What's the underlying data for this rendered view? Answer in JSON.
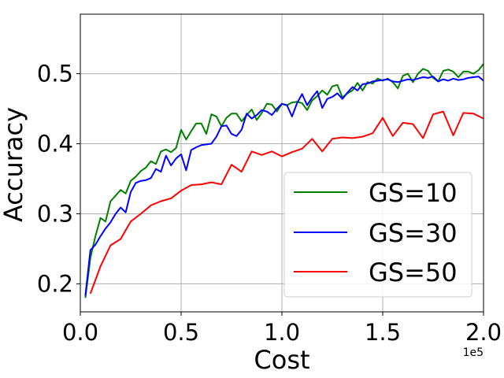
{
  "chart_data": {
    "type": "line",
    "xlabel": "Cost",
    "ylabel": "Accuracy",
    "x_offset_label": "1e5",
    "xlim": [
      0,
      2.0
    ],
    "ylim": [
      0.16,
      0.585
    ],
    "xticks": [
      0.0,
      0.5,
      1.0,
      1.5,
      2.0
    ],
    "xtick_labels": [
      "0.0",
      "0.5",
      "1.0",
      "1.5",
      "2.0"
    ],
    "yticks": [
      0.2,
      0.3,
      0.4,
      0.5
    ],
    "ytick_labels": [
      "0.2",
      "0.3",
      "0.4",
      "0.5"
    ],
    "grid": true,
    "legend_position": "lower-right",
    "series": [
      {
        "name": "GS=10",
        "color": "#008000",
        "points": [
          [
            0.025,
            0.18
          ],
          [
            0.05,
            0.237
          ],
          [
            0.075,
            0.268
          ],
          [
            0.1,
            0.294
          ],
          [
            0.125,
            0.289
          ],
          [
            0.15,
            0.318
          ],
          [
            0.175,
            0.326
          ],
          [
            0.2,
            0.334
          ],
          [
            0.225,
            0.329
          ],
          [
            0.25,
            0.347
          ],
          [
            0.275,
            0.353
          ],
          [
            0.3,
            0.361
          ],
          [
            0.325,
            0.366
          ],
          [
            0.35,
            0.375
          ],
          [
            0.375,
            0.371
          ],
          [
            0.4,
            0.389
          ],
          [
            0.425,
            0.392
          ],
          [
            0.45,
            0.388
          ],
          [
            0.475,
            0.394
          ],
          [
            0.5,
            0.42
          ],
          [
            0.525,
            0.406
          ],
          [
            0.55,
            0.418
          ],
          [
            0.575,
            0.429
          ],
          [
            0.6,
            0.429
          ],
          [
            0.625,
            0.414
          ],
          [
            0.65,
            0.442
          ],
          [
            0.675,
            0.439
          ],
          [
            0.7,
            0.425
          ],
          [
            0.725,
            0.437
          ],
          [
            0.75,
            0.443
          ],
          [
            0.775,
            0.443
          ],
          [
            0.8,
            0.432
          ],
          [
            0.825,
            0.441
          ],
          [
            0.85,
            0.449
          ],
          [
            0.875,
            0.434
          ],
          [
            0.9,
            0.444
          ],
          [
            0.925,
            0.457
          ],
          [
            0.95,
            0.456
          ],
          [
            0.975,
            0.446
          ],
          [
            1.0,
            0.457
          ],
          [
            1.025,
            0.455
          ],
          [
            1.05,
            0.459
          ],
          [
            1.075,
            0.46
          ],
          [
            1.1,
            0.458
          ],
          [
            1.125,
            0.448
          ],
          [
            1.15,
            0.462
          ],
          [
            1.175,
            0.468
          ],
          [
            1.2,
            0.476
          ],
          [
            1.225,
            0.47
          ],
          [
            1.25,
            0.482
          ],
          [
            1.275,
            0.484
          ],
          [
            1.3,
            0.466
          ],
          [
            1.325,
            0.472
          ],
          [
            1.35,
            0.476
          ],
          [
            1.375,
            0.487
          ],
          [
            1.4,
            0.476
          ],
          [
            1.425,
            0.488
          ],
          [
            1.45,
            0.486
          ],
          [
            1.475,
            0.493
          ],
          [
            1.5,
            0.49
          ],
          [
            1.525,
            0.493
          ],
          [
            1.55,
            0.488
          ],
          [
            1.575,
            0.479
          ],
          [
            1.6,
            0.497
          ],
          [
            1.625,
            0.5
          ],
          [
            1.65,
            0.488
          ],
          [
            1.675,
            0.5
          ],
          [
            1.7,
            0.507
          ],
          [
            1.725,
            0.504
          ],
          [
            1.75,
            0.494
          ],
          [
            1.775,
            0.489
          ],
          [
            1.8,
            0.504
          ],
          [
            1.825,
            0.506
          ],
          [
            1.85,
            0.503
          ],
          [
            1.875,
            0.495
          ],
          [
            1.9,
            0.503
          ],
          [
            1.925,
            0.503
          ],
          [
            1.95,
            0.5
          ],
          [
            1.975,
            0.505
          ],
          [
            2.0,
            0.514
          ]
        ]
      },
      {
        "name": "GS=30",
        "color": "#0000ff",
        "points": [
          [
            0.025,
            0.183
          ],
          [
            0.05,
            0.248
          ],
          [
            0.075,
            0.256
          ],
          [
            0.1,
            0.268
          ],
          [
            0.125,
            0.279
          ],
          [
            0.15,
            0.288
          ],
          [
            0.175,
            0.3
          ],
          [
            0.2,
            0.309
          ],
          [
            0.225,
            0.302
          ],
          [
            0.25,
            0.331
          ],
          [
            0.275,
            0.344
          ],
          [
            0.3,
            0.347
          ],
          [
            0.325,
            0.348
          ],
          [
            0.35,
            0.351
          ],
          [
            0.375,
            0.364
          ],
          [
            0.4,
            0.36
          ],
          [
            0.425,
            0.383
          ],
          [
            0.45,
            0.369
          ],
          [
            0.475,
            0.379
          ],
          [
            0.5,
            0.385
          ],
          [
            0.525,
            0.362
          ],
          [
            0.55,
            0.391
          ],
          [
            0.575,
            0.395
          ],
          [
            0.6,
            0.398
          ],
          [
            0.625,
            0.399
          ],
          [
            0.65,
            0.4
          ],
          [
            0.675,
            0.41
          ],
          [
            0.7,
            0.425
          ],
          [
            0.725,
            0.426
          ],
          [
            0.75,
            0.414
          ],
          [
            0.775,
            0.411
          ],
          [
            0.8,
            0.42
          ],
          [
            0.825,
            0.443
          ],
          [
            0.85,
            0.436
          ],
          [
            0.875,
            0.441
          ],
          [
            0.9,
            0.448
          ],
          [
            0.925,
            0.446
          ],
          [
            0.95,
            0.441
          ],
          [
            0.975,
            0.45
          ],
          [
            1.0,
            0.457
          ],
          [
            1.025,
            0.455
          ],
          [
            1.05,
            0.439
          ],
          [
            1.075,
            0.458
          ],
          [
            1.1,
            0.471
          ],
          [
            1.125,
            0.455
          ],
          [
            1.15,
            0.466
          ],
          [
            1.175,
            0.475
          ],
          [
            1.2,
            0.451
          ],
          [
            1.225,
            0.464
          ],
          [
            1.25,
            0.467
          ],
          [
            1.275,
            0.472
          ],
          [
            1.3,
            0.464
          ],
          [
            1.325,
            0.473
          ],
          [
            1.35,
            0.481
          ],
          [
            1.375,
            0.476
          ],
          [
            1.4,
            0.485
          ],
          [
            1.425,
            0.486
          ],
          [
            1.45,
            0.489
          ],
          [
            1.475,
            0.49
          ],
          [
            1.5,
            0.491
          ],
          [
            1.525,
            0.492
          ],
          [
            1.55,
            0.489
          ],
          [
            1.575,
            0.488
          ],
          [
            1.6,
            0.49
          ],
          [
            1.625,
            0.492
          ],
          [
            1.65,
            0.491
          ],
          [
            1.675,
            0.493
          ],
          [
            1.7,
            0.495
          ],
          [
            1.725,
            0.494
          ],
          [
            1.75,
            0.496
          ],
          [
            1.775,
            0.489
          ],
          [
            1.8,
            0.492
          ],
          [
            1.825,
            0.49
          ],
          [
            1.85,
            0.493
          ],
          [
            1.875,
            0.491
          ],
          [
            1.9,
            0.492
          ],
          [
            1.925,
            0.494
          ],
          [
            1.95,
            0.495
          ],
          [
            1.975,
            0.496
          ],
          [
            2.0,
            0.49
          ]
        ]
      },
      {
        "name": "GS=50",
        "color": "#ff0000",
        "points": [
          [
            0.05,
            0.186
          ],
          [
            0.1,
            0.225
          ],
          [
            0.15,
            0.255
          ],
          [
            0.2,
            0.264
          ],
          [
            0.25,
            0.289
          ],
          [
            0.3,
            0.3
          ],
          [
            0.35,
            0.312
          ],
          [
            0.4,
            0.318
          ],
          [
            0.45,
            0.322
          ],
          [
            0.5,
            0.333
          ],
          [
            0.55,
            0.341
          ],
          [
            0.6,
            0.342
          ],
          [
            0.65,
            0.345
          ],
          [
            0.7,
            0.342
          ],
          [
            0.75,
            0.37
          ],
          [
            0.8,
            0.36
          ],
          [
            0.85,
            0.389
          ],
          [
            0.9,
            0.384
          ],
          [
            0.95,
            0.389
          ],
          [
            1.0,
            0.382
          ],
          [
            1.05,
            0.388
          ],
          [
            1.1,
            0.393
          ],
          [
            1.15,
            0.407
          ],
          [
            1.2,
            0.389
          ],
          [
            1.25,
            0.407
          ],
          [
            1.3,
            0.409
          ],
          [
            1.35,
            0.408
          ],
          [
            1.4,
            0.41
          ],
          [
            1.45,
            0.415
          ],
          [
            1.5,
            0.437
          ],
          [
            1.55,
            0.411
          ],
          [
            1.6,
            0.43
          ],
          [
            1.65,
            0.428
          ],
          [
            1.7,
            0.408
          ],
          [
            1.75,
            0.442
          ],
          [
            1.8,
            0.446
          ],
          [
            1.85,
            0.412
          ],
          [
            1.9,
            0.444
          ],
          [
            1.95,
            0.443
          ],
          [
            2.0,
            0.436
          ]
        ]
      }
    ]
  }
}
